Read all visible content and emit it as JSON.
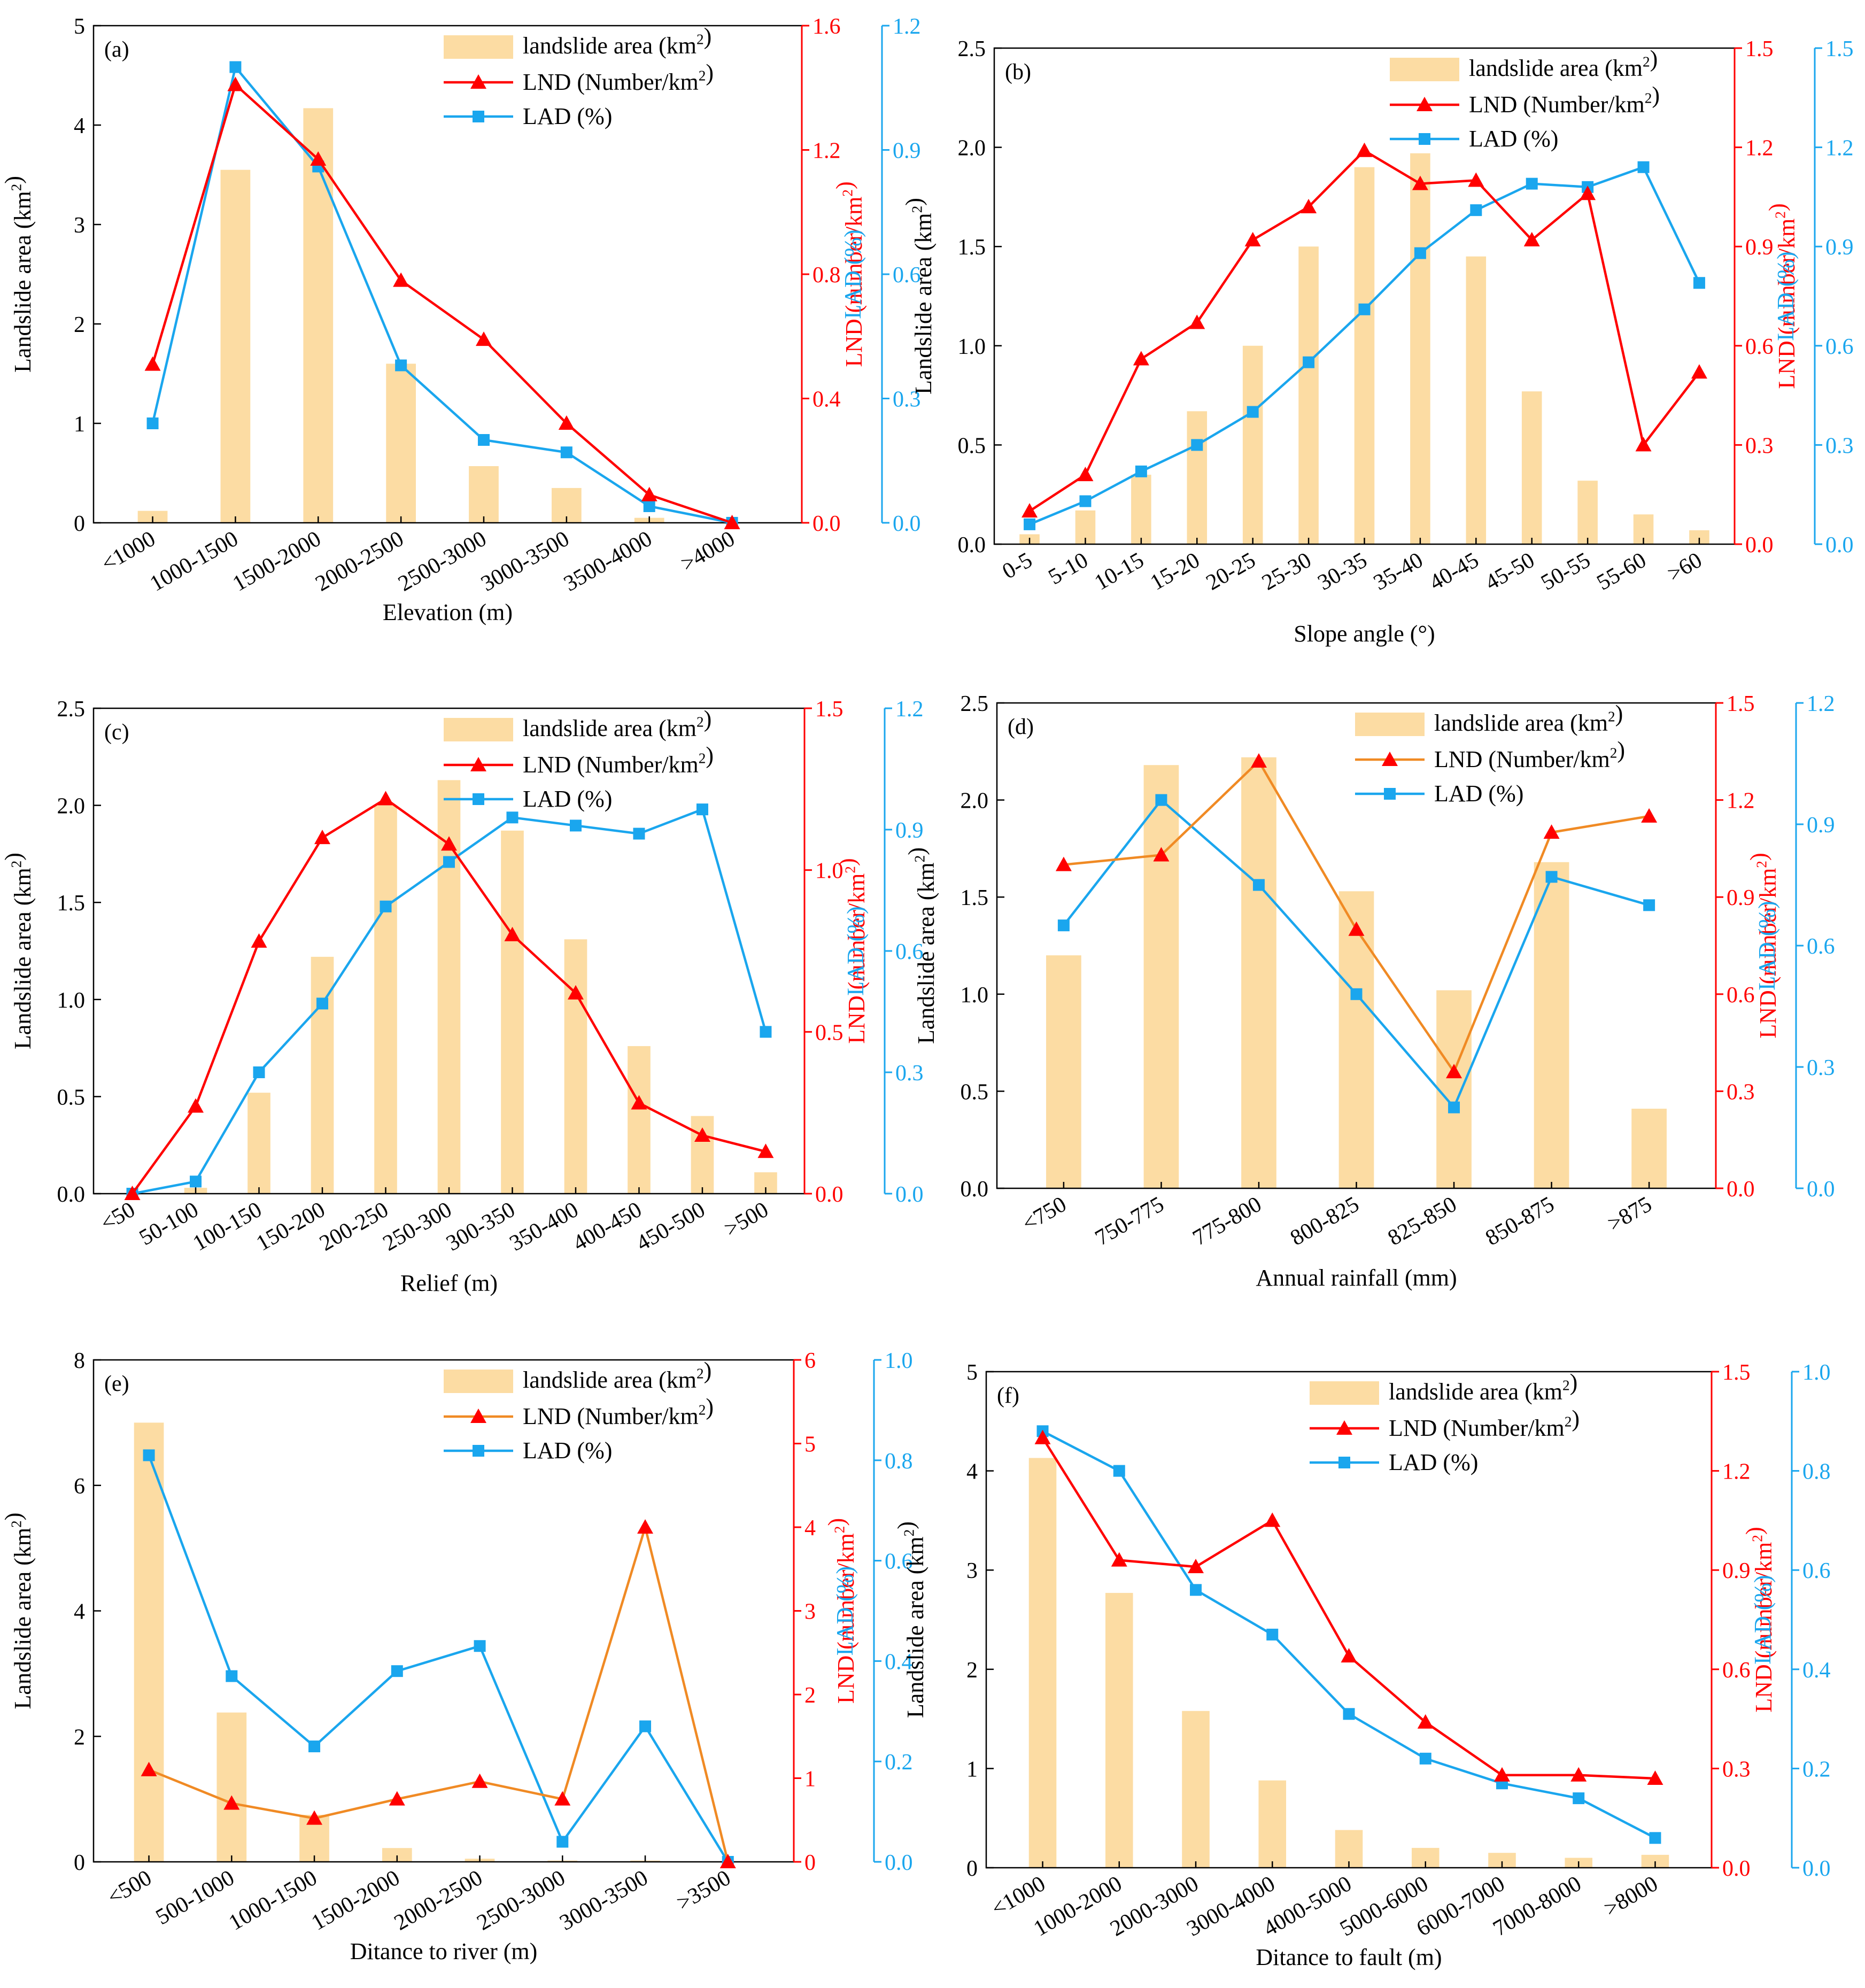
{
  "legend_labels": {
    "area": "landslide area (km²)",
    "lnd": "LND (Number/km²)",
    "lad": "LAD (%)"
  },
  "axis_titles": {
    "left": "Landslide area (km²)",
    "right1": "LND (number/km²)",
    "right2": "LAD (%)"
  },
  "colors": {
    "bar": "#FCDCA3",
    "lnd_line_red": "#FF0000",
    "lnd_line_orange": "#F08A24",
    "lnd_marker": "#FF0000",
    "lad": "#1AA6EE",
    "red_axis": "#FF0000",
    "blue_axis": "#1AA6EE"
  },
  "chart_data": [
    {
      "panel": "(a)",
      "type": "bar",
      "xlabel": "Elevation (m)",
      "categories": [
        "<1000",
        "1000-1500",
        "1500-2000",
        "2000-2500",
        "2500-3000",
        "3000-3500",
        "3500-4000",
        ">4000"
      ],
      "series": [
        {
          "name": "landslide area (km²)",
          "axis": "left",
          "values": [
            0.12,
            3.55,
            4.17,
            1.6,
            0.57,
            0.35,
            0.05,
            0.0
          ]
        },
        {
          "name": "LND (Number/km²)",
          "axis": "right1",
          "values": [
            0.51,
            1.41,
            1.17,
            0.78,
            0.59,
            0.32,
            0.09,
            0.0
          ]
        },
        {
          "name": "LAD (%)",
          "axis": "right2",
          "values": [
            0.24,
            1.1,
            0.86,
            0.38,
            0.2,
            0.17,
            0.04,
            0.0
          ]
        }
      ],
      "ylim_left": [
        0,
        5
      ],
      "yticks_left": [
        0,
        1,
        2,
        3,
        4,
        5
      ],
      "ylim_right1": [
        0,
        1.6
      ],
      "yticks_right1": [
        0.0,
        0.4,
        0.8,
        1.2,
        1.6
      ],
      "ylim_right2": [
        0,
        1.2
      ],
      "yticks_right2": [
        0.0,
        0.3,
        0.6,
        0.9,
        1.2
      ]
    },
    {
      "panel": "(b)",
      "type": "bar",
      "xlabel": "Slope angle (°)",
      "categories": [
        "0-5",
        "5-10",
        "10-15",
        "15-20",
        "20-25",
        "25-30",
        "30-35",
        "35-40",
        "40-45",
        "45-50",
        "50-55",
        "55-60",
        ">60"
      ],
      "series": [
        {
          "name": "landslide area (km²)",
          "axis": "left",
          "values": [
            0.05,
            0.17,
            0.35,
            0.67,
            1.0,
            1.5,
            1.9,
            1.97,
            1.45,
            0.77,
            0.32,
            0.15,
            0.07
          ]
        },
        {
          "name": "LND (Number/km²)",
          "axis": "right1",
          "values": [
            0.1,
            0.21,
            0.56,
            0.67,
            0.92,
            1.02,
            1.19,
            1.09,
            1.1,
            0.92,
            1.06,
            0.3,
            0.52
          ]
        },
        {
          "name": "LAD (%)",
          "axis": "right2",
          "values": [
            0.06,
            0.13,
            0.22,
            0.3,
            0.4,
            0.55,
            0.71,
            0.88,
            1.01,
            1.09,
            1.08,
            1.14,
            0.79
          ]
        }
      ],
      "ylim_left": [
        0,
        2.5
      ],
      "yticks_left": [
        0.0,
        0.5,
        1.0,
        1.5,
        2.0,
        2.5
      ],
      "ylim_right1": [
        0,
        1.5
      ],
      "yticks_right1": [
        0.0,
        0.3,
        0.6,
        0.9,
        1.2,
        1.5
      ],
      "ylim_right2": [
        0,
        1.5
      ],
      "yticks_right2": [
        0.0,
        0.3,
        0.6,
        0.9,
        1.2,
        1.5
      ]
    },
    {
      "panel": "(c)",
      "type": "bar",
      "xlabel": "Relief (m)",
      "categories": [
        "<50",
        "50-100",
        "100-150",
        "150-200",
        "200-250",
        "250-300",
        "300-350",
        "350-400",
        "400-450",
        "450-500",
        ">500"
      ],
      "series": [
        {
          "name": "landslide area (km²)",
          "axis": "left",
          "values": [
            0.0,
            0.03,
            0.52,
            1.22,
            2.0,
            2.13,
            1.87,
            1.31,
            0.76,
            0.4,
            0.11
          ]
        },
        {
          "name": "LND (Number/km²)",
          "axis": "right1",
          "values": [
            0.0,
            0.27,
            0.78,
            1.1,
            1.22,
            1.08,
            0.8,
            0.62,
            0.28,
            0.18,
            0.13
          ]
        },
        {
          "name": "LAD (%)",
          "axis": "right2",
          "values": [
            0.0,
            0.03,
            0.3,
            0.47,
            0.71,
            0.82,
            0.93,
            0.91,
            0.89,
            0.95,
            0.4
          ]
        }
      ],
      "ylim_left": [
        0,
        2.5
      ],
      "yticks_left": [
        0.0,
        0.5,
        1.0,
        1.5,
        2.0,
        2.5
      ],
      "ylim_right1": [
        0,
        1.5
      ],
      "yticks_right1": [
        0.0,
        0.5,
        1.0,
        1.5
      ],
      "ylim_right2": [
        0,
        1.2
      ],
      "yticks_right2": [
        0.0,
        0.3,
        0.6,
        0.9,
        1.2
      ]
    },
    {
      "panel": "(d)",
      "type": "bar",
      "xlabel": "Annual rainfall (mm)",
      "categories": [
        "<750",
        "750-775",
        "775-800",
        "800-825",
        "825-850",
        "850-875",
        ">875"
      ],
      "series": [
        {
          "name": "landslide area (km²)",
          "axis": "left",
          "values": [
            1.2,
            2.18,
            2.22,
            1.53,
            1.02,
            1.68,
            0.41
          ]
        },
        {
          "name": "LND (Number/km²)",
          "axis": "right1",
          "values": [
            1.0,
            1.03,
            1.32,
            0.8,
            0.36,
            1.1,
            1.15
          ]
        },
        {
          "name": "LAD (%)",
          "axis": "right2",
          "values": [
            0.65,
            0.96,
            0.75,
            0.48,
            0.2,
            0.77,
            0.7
          ]
        }
      ],
      "ylim_left": [
        0,
        2.5
      ],
      "yticks_left": [
        0.0,
        0.5,
        1.0,
        1.5,
        2.0,
        2.5
      ],
      "ylim_right1": [
        0,
        1.5
      ],
      "yticks_right1": [
        0.0,
        0.3,
        0.6,
        0.9,
        1.2,
        1.5
      ],
      "ylim_right2": [
        0,
        1.2
      ],
      "yticks_right2": [
        0.0,
        0.3,
        0.6,
        0.9,
        1.2
      ]
    },
    {
      "panel": "(e)",
      "type": "bar",
      "xlabel": "Ditance to river (m)",
      "categories": [
        "<500",
        "500-1000",
        "1000-1500",
        "1500-2000",
        "2000-2500",
        "2500-3000",
        "3000-3500",
        ">3500"
      ],
      "series": [
        {
          "name": "landslide area (km²)",
          "axis": "left",
          "values": [
            7.0,
            2.38,
            0.75,
            0.22,
            0.05,
            0.02,
            0.02,
            0.0
          ]
        },
        {
          "name": "LND (Number/km²)",
          "axis": "right1",
          "values": [
            1.1,
            0.7,
            0.52,
            0.75,
            0.96,
            0.75,
            4.0,
            0.0
          ]
        },
        {
          "name": "LAD (%)",
          "axis": "right2",
          "values": [
            0.81,
            0.37,
            0.23,
            0.38,
            0.43,
            0.04,
            0.27,
            0.0
          ]
        }
      ],
      "ylim_left": [
        0,
        8
      ],
      "yticks_left": [
        0,
        2,
        4,
        6,
        8
      ],
      "ylim_right1": [
        0,
        6
      ],
      "yticks_right1": [
        0,
        1,
        2,
        3,
        4,
        5,
        6
      ],
      "ylim_right2": [
        0,
        1.0
      ],
      "yticks_right2": [
        0.0,
        0.2,
        0.4,
        0.6,
        0.8,
        1.0
      ]
    },
    {
      "panel": "(f)",
      "type": "bar",
      "xlabel": "Ditance to fault (m)",
      "categories": [
        "<1000",
        "1000-2000",
        "2000-3000",
        "3000-4000",
        "4000-5000",
        "5000-6000",
        "6000-7000",
        "7000-8000",
        ">8000"
      ],
      "series": [
        {
          "name": "landslide area (km²)",
          "axis": "left",
          "values": [
            4.13,
            2.77,
            1.58,
            0.88,
            0.38,
            0.2,
            0.15,
            0.1,
            0.13
          ]
        },
        {
          "name": "LND (Number/km²)",
          "axis": "right1",
          "values": [
            1.3,
            0.93,
            0.91,
            1.05,
            0.64,
            0.44,
            0.28,
            0.28,
            0.27
          ]
        },
        {
          "name": "LAD (%)",
          "axis": "right2",
          "values": [
            0.88,
            0.8,
            0.56,
            0.47,
            0.31,
            0.22,
            0.17,
            0.14,
            0.06
          ]
        }
      ],
      "ylim_left": [
        0,
        5
      ],
      "yticks_left": [
        0,
        1,
        2,
        3,
        4,
        5
      ],
      "ylim_right1": [
        0,
        1.5
      ],
      "yticks_right1": [
        0.0,
        0.3,
        0.6,
        0.9,
        1.2,
        1.5
      ],
      "ylim_right2": [
        0,
        1.0
      ],
      "yticks_right2": [
        0.0,
        0.2,
        0.4,
        0.6,
        0.8,
        1.0
      ]
    }
  ]
}
